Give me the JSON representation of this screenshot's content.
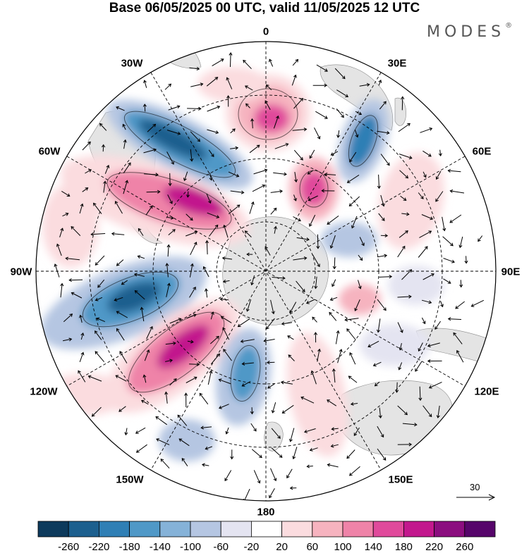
{
  "title": "Base 06/05/2025 00 UTC, valid 11/05/2025 12 UTC",
  "brand": "MODES",
  "brand_mark": "®",
  "longitude_labels": {
    "lon_0": "0",
    "lon_30e": "30E",
    "lon_60e": "60E",
    "lon_90e": "90E",
    "lon_120e": "120E",
    "lon_150e": "150E",
    "lon_180": "180",
    "lon_150w": "150W",
    "lon_120w": "120W",
    "lon_90w": "90W",
    "lon_60w": "60W",
    "lon_30w": "30W"
  },
  "vector_scale": "30",
  "colorbar": {
    "colors": [
      "#0d3a5c",
      "#1c5f8e",
      "#2f7fb5",
      "#4f98c7",
      "#85b2d8",
      "#b5c6e2",
      "#e4e4f1",
      "#ffffff",
      "#fbdcdf",
      "#f6b3bf",
      "#ef83a8",
      "#e04a9b",
      "#c2188d",
      "#8b0e7f",
      "#56056a"
    ],
    "labels": [
      "-260",
      "-220",
      "-180",
      "-140",
      "-100",
      "-60",
      "-20",
      "20",
      "60",
      "100",
      "140",
      "180",
      "220",
      "260"
    ]
  },
  "colors": {
    "land": "#e4e4e4",
    "grid": "#000000"
  }
}
